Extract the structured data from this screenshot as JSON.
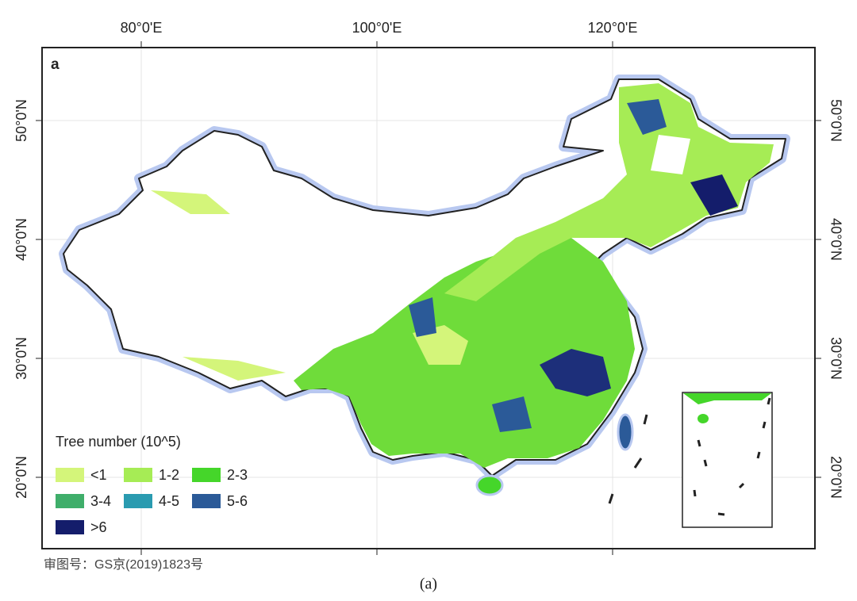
{
  "panel_label": "a",
  "longitude_labels": [
    "80°0'E",
    "100°0'E",
    "120°0'E"
  ],
  "latitude_labels": [
    "50°0'N",
    "40°0'N",
    "30°0'N",
    "20°0'N"
  ],
  "legend": {
    "title": "Tree number (10^5)",
    "items": [
      {
        "label": "<1",
        "color": "#d4f57a"
      },
      {
        "label": "1-2",
        "color": "#a6ec55"
      },
      {
        "label": "2-3",
        "color": "#45d62a"
      },
      {
        "label": "3-4",
        "color": "#3fae6a"
      },
      {
        "label": "4-5",
        "color": "#2a9bb0"
      },
      {
        "label": "5-6",
        "color": "#2b5a98"
      },
      {
        "label": ">6",
        "color": "#141d6b"
      }
    ]
  },
  "approval_number": "审图号：GS京(2019)1823号",
  "caption": "(a)"
}
